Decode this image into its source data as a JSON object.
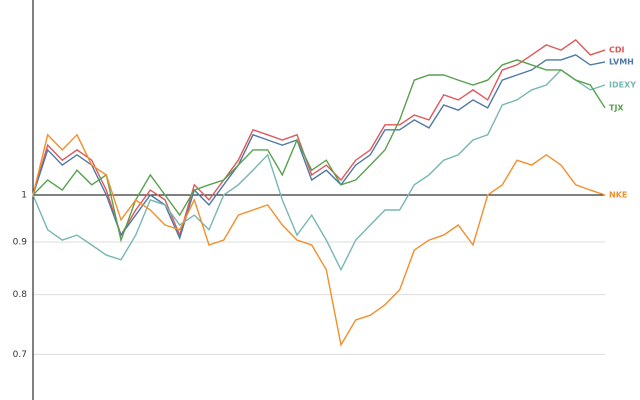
{
  "chart_data": {
    "type": "line",
    "yscale": "log",
    "grid": true,
    "legend": "line-end",
    "ylim": [
      0.632,
      1.547
    ],
    "yticks": [
      0.7,
      0.8,
      0.9,
      1
    ],
    "series": [
      {
        "name": "CDI",
        "color": "#e15759",
        "values": [
          1,
          1.118,
          1.081,
          1.106,
          1.081,
          1.011,
          0.914,
          0.967,
          1.011,
          0.989,
          0.914,
          1.023,
          0.989,
          1.034,
          1.081,
          1.157,
          1.144,
          1.131,
          1.144,
          1.046,
          1.069,
          1.034,
          1.081,
          1.106,
          1.17,
          1.17,
          1.196,
          1.183,
          1.251,
          1.237,
          1.265,
          1.237,
          1.323,
          1.338,
          1.368,
          1.399,
          1.383,
          1.415,
          1.368,
          1.383
        ]
      },
      {
        "name": "LVMH",
        "color": "#4e79a7",
        "values": [
          1,
          1.106,
          1.069,
          1.094,
          1.069,
          1,
          0.914,
          0.956,
          1,
          0.978,
          0.908,
          1.011,
          0.978,
          1.023,
          1.069,
          1.144,
          1.131,
          1.118,
          1.131,
          1.034,
          1.057,
          1.023,
          1.069,
          1.094,
          1.157,
          1.157,
          1.183,
          1.162,
          1.223,
          1.209,
          1.237,
          1.215,
          1.293,
          1.308,
          1.323,
          1.353,
          1.353,
          1.368,
          1.338,
          1.347
        ]
      },
      {
        "name": "IDEXY",
        "color": "#76b7b2",
        "values": [
          1,
          0.925,
          0.904,
          0.914,
          0.894,
          0.874,
          0.865,
          0.914,
          0.989,
          0.978,
          0.935,
          0.956,
          0.925,
          1,
          1.023,
          1.057,
          1.094,
          0.989,
          0.914,
          0.956,
          0.904,
          0.846,
          0.904,
          0.935,
          0.967,
          0.967,
          1.023,
          1.046,
          1.081,
          1.094,
          1.131,
          1.144,
          1.223,
          1.237,
          1.265,
          1.279,
          1.323,
          1.293,
          1.265,
          1.279
        ]
      },
      {
        "name": "TJX",
        "color": "#59a14f",
        "values": [
          1,
          1.034,
          1.011,
          1.057,
          1.023,
          1.046,
          0.904,
          0.989,
          1.046,
          1,
          0.956,
          1.011,
          1.023,
          1.034,
          1.069,
          1.106,
          1.106,
          1.046,
          1.131,
          1.057,
          1.081,
          1.023,
          1.034,
          1.069,
          1.106,
          1.183,
          1.293,
          1.308,
          1.308,
          1.293,
          1.279,
          1.293,
          1.338,
          1.353,
          1.338,
          1.323,
          1.323,
          1.293,
          1.279,
          1.215
        ]
      },
      {
        "name": "NKE",
        "color": "#f28e2b",
        "values": [
          1,
          1.144,
          1.106,
          1.144,
          1.069,
          1.046,
          0.946,
          0.989,
          0.967,
          0.935,
          0.925,
          0.989,
          0.894,
          0.904,
          0.956,
          0.967,
          0.978,
          0.935,
          0.904,
          0.894,
          0.846,
          0.715,
          0.756,
          0.764,
          0.782,
          0.809,
          0.884,
          0.904,
          0.914,
          0.935,
          0.894,
          1,
          1.023,
          1.081,
          1.069,
          1.094,
          1.069,
          1.023,
          1.011,
          1
        ]
      }
    ]
  }
}
